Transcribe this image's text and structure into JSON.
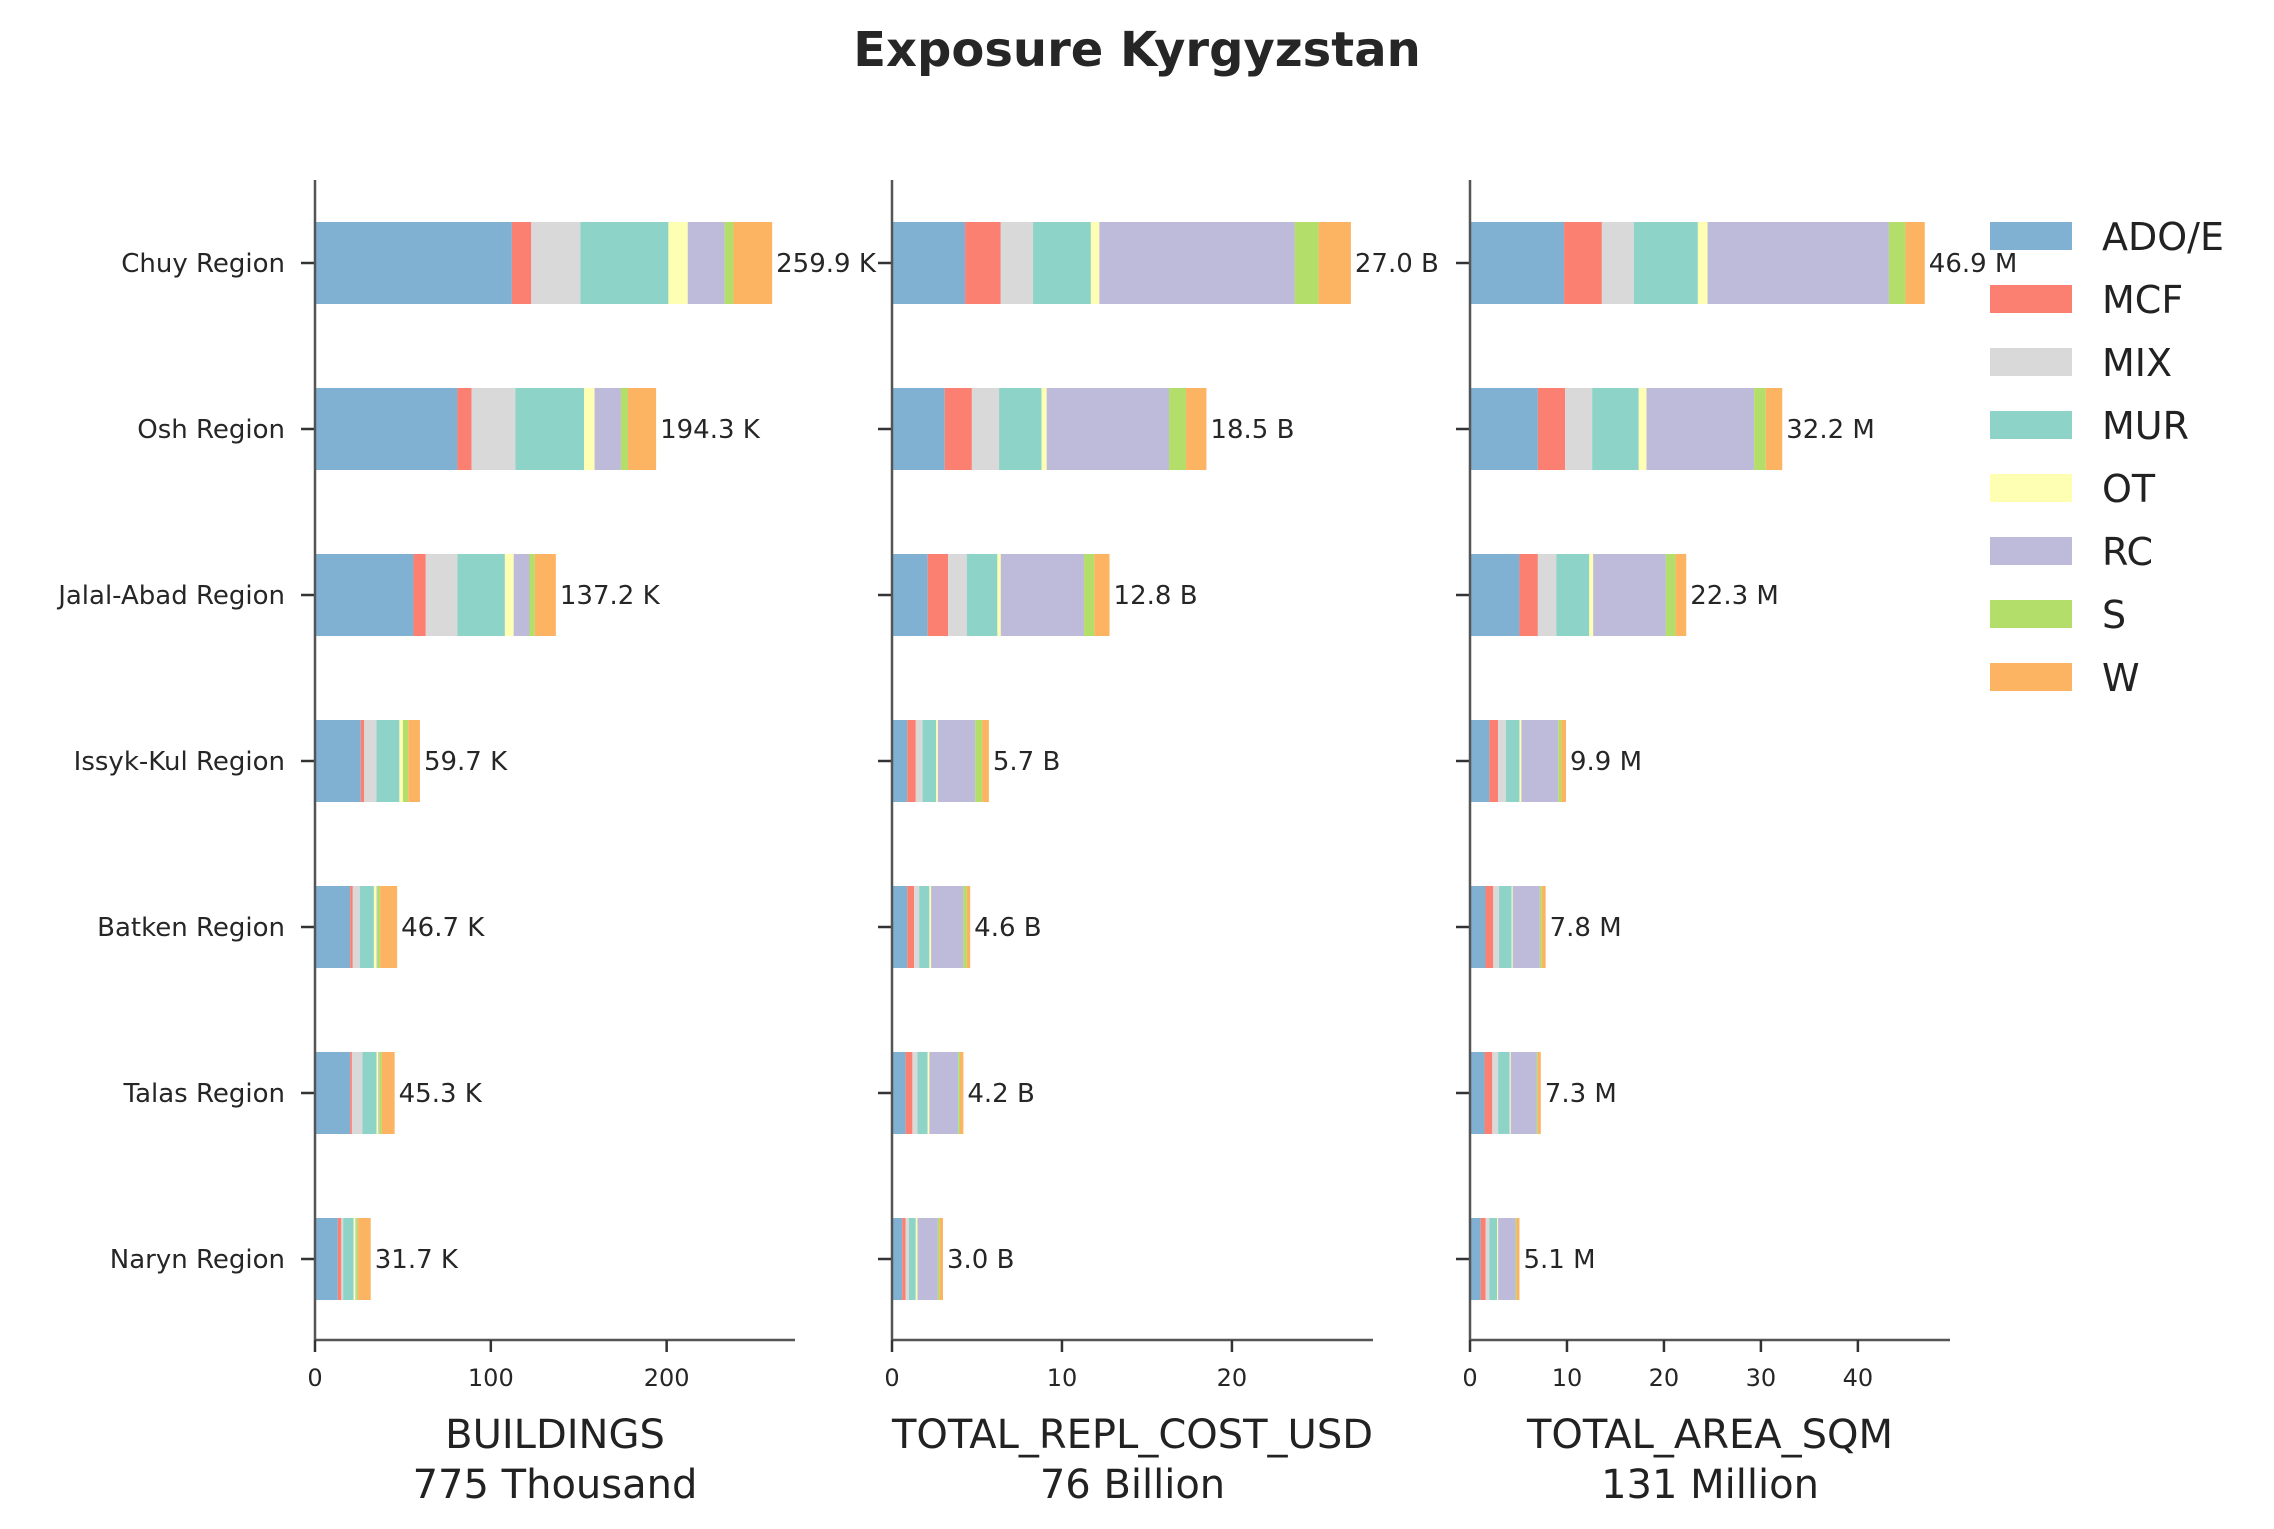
{
  "chart_data": {
    "type": "bar",
    "orientation": "horizontal",
    "stacked": true,
    "title": "Exposure Kyrgyzstan",
    "categories": [
      "Chuy Region",
      "Osh Region",
      "Jalal-Abad Region",
      "Issyk-Kul Region",
      "Batken Region",
      "Talas Region",
      "Naryn Region"
    ],
    "legend": {
      "placement": "right",
      "entries": [
        {
          "name": "ADO/E",
          "color": "#80b1d3"
        },
        {
          "name": "MCF",
          "color": "#fb8072"
        },
        {
          "name": "MIX",
          "color": "#d9d9d9"
        },
        {
          "name": "MUR",
          "color": "#8dd3c7"
        },
        {
          "name": "OT",
          "color": "#ffffb3"
        },
        {
          "name": "RC",
          "color": "#bebada"
        },
        {
          "name": "S",
          "color": "#b3de69"
        },
        {
          "name": "W",
          "color": "#fdb462"
        }
      ]
    },
    "panels": [
      {
        "xlabel": "BUILDINGS",
        "subtitle": "775 Thousand",
        "xlim": [
          0,
          273
        ],
        "ticks": [
          0,
          100,
          200
        ],
        "totals_labels": [
          "259.9 K",
          "194.3 K",
          "137.2 K",
          "59.7 K",
          "46.7 K",
          "45.3 K",
          "31.7 K"
        ],
        "values": [
          [
            112,
            11,
            28,
            50,
            11,
            21,
            5,
            22
          ],
          [
            81,
            8,
            25,
            39,
            6,
            15,
            4,
            16
          ],
          [
            56,
            7,
            18,
            27,
            5,
            9,
            3,
            12
          ],
          [
            26,
            2,
            7,
            13,
            2,
            0,
            3,
            6.7
          ],
          [
            20,
            1.5,
            4,
            8,
            1.5,
            0.5,
            1.5,
            9.7
          ],
          [
            20,
            1,
            6,
            8,
            1,
            0.5,
            1.5,
            7.3
          ],
          [
            13,
            2,
            1,
            6,
            1,
            0.5,
            1,
            7.2
          ]
        ]
      },
      {
        "xlabel": "TOTAL_REPL_COST_USD",
        "subtitle": "76 Billion",
        "xlim": [
          0,
          28.3
        ],
        "ticks": [
          0,
          10,
          20
        ],
        "totals_labels": [
          "27.0 B",
          "18.5 B",
          "12.8 B",
          "5.7 B",
          "4.6 B",
          "4.2 B",
          "3.0 B"
        ],
        "values": [
          [
            4.3,
            2.1,
            1.9,
            3.4,
            0.5,
            11.5,
            1.4,
            1.9
          ],
          [
            3.1,
            1.6,
            1.6,
            2.5,
            0.3,
            7.2,
            1.0,
            1.2
          ],
          [
            2.1,
            1.2,
            1.1,
            1.8,
            0.2,
            4.9,
            0.6,
            0.9
          ],
          [
            0.9,
            0.5,
            0.4,
            0.8,
            0.1,
            2.2,
            0.4,
            0.4
          ],
          [
            0.9,
            0.4,
            0.3,
            0.6,
            0.1,
            1.9,
            0.2,
            0.2
          ],
          [
            0.8,
            0.4,
            0.3,
            0.6,
            0.1,
            1.7,
            0.1,
            0.2
          ],
          [
            0.6,
            0.2,
            0.2,
            0.4,
            0.1,
            1.2,
            0.1,
            0.2
          ]
        ]
      },
      {
        "xlabel": "TOTAL_AREA_SQM",
        "subtitle": "131 Million",
        "xlim": [
          0,
          49.5
        ],
        "ticks": [
          0,
          10,
          20,
          30,
          40
        ],
        "totals_labels": [
          "46.9 M",
          "32.2 M",
          "22.3 M",
          "9.9 M",
          "7.8 M",
          "7.3 M",
          "5.1 M"
        ],
        "values": [
          [
            9.7,
            3.9,
            3.3,
            6.6,
            1.0,
            18.7,
            1.7,
            2.0
          ],
          [
            7.0,
            2.8,
            2.8,
            4.8,
            0.8,
            11.1,
            1.2,
            1.7
          ],
          [
            5.1,
            1.9,
            1.9,
            3.4,
            0.4,
            7.5,
            1.0,
            1.1
          ],
          [
            2.0,
            0.9,
            0.8,
            1.4,
            0.2,
            3.8,
            0.3,
            0.5
          ],
          [
            1.6,
            0.8,
            0.6,
            1.3,
            0.1,
            2.8,
            0.2,
            0.4
          ],
          [
            1.5,
            0.8,
            0.6,
            1.2,
            0.1,
            2.7,
            0.1,
            0.3
          ],
          [
            1.1,
            0.5,
            0.4,
            0.8,
            0.1,
            1.8,
            0.1,
            0.3
          ]
        ]
      }
    ]
  }
}
